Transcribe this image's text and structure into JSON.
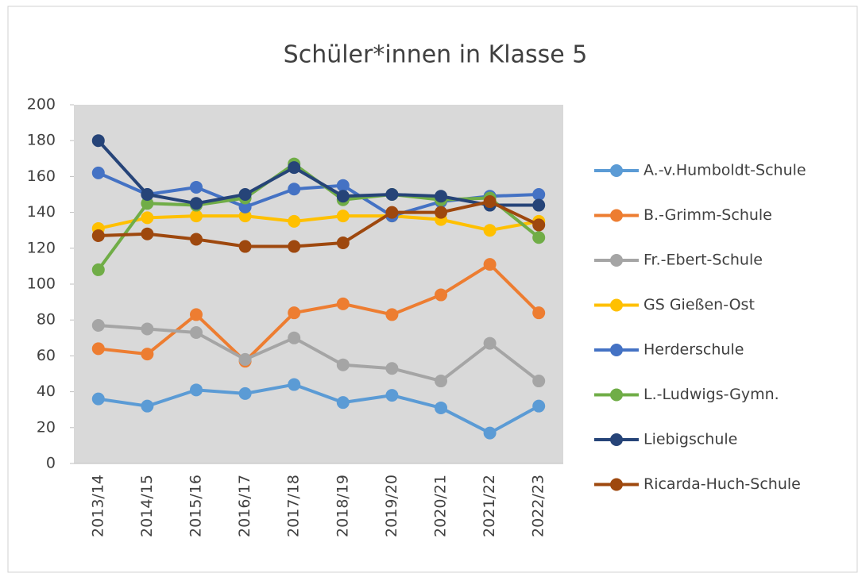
{
  "chart_data": {
    "type": "line",
    "title": "Schüler*innen in Klasse 5",
    "categories": [
      "2013/14",
      "2014/15",
      "2015/16",
      "2016/17",
      "2017/18",
      "2018/19",
      "2019/20",
      "2020/21",
      "2021/22",
      "2022/23"
    ],
    "series": [
      {
        "name": "A.-v.Humboldt-Schule",
        "color": "#5b9bd5",
        "values": [
          36,
          32,
          41,
          39,
          44,
          34,
          38,
          31,
          17,
          32
        ]
      },
      {
        "name": "B.-Grimm-Schule",
        "color": "#ed7d31",
        "values": [
          64,
          61,
          83,
          57,
          84,
          89,
          83,
          94,
          111,
          84
        ]
      },
      {
        "name": "Fr.-Ebert-Schule",
        "color": "#a5a5a5",
        "values": [
          77,
          75,
          73,
          58,
          70,
          55,
          53,
          46,
          67,
          46
        ]
      },
      {
        "name": "GS Gießen-Ost",
        "color": "#ffc000",
        "values": [
          131,
          137,
          138,
          138,
          135,
          138,
          138,
          136,
          130,
          135
        ]
      },
      {
        "name": "Herderschule",
        "color": "#4472c4",
        "values": [
          162,
          150,
          154,
          143,
          153,
          155,
          138,
          146,
          149,
          150
        ]
      },
      {
        "name": "L.-Ludwigs-Gymn.",
        "color": "#70ad47",
        "values": [
          108,
          145,
          144,
          148,
          167,
          147,
          150,
          147,
          148,
          126
        ]
      },
      {
        "name": "Liebigschule",
        "color": "#264478",
        "values": [
          180,
          150,
          145,
          150,
          165,
          149,
          150,
          149,
          144,
          144
        ]
      },
      {
        "name": "Ricarda-Huch-Schule",
        "color": "#9e480e",
        "values": [
          127,
          128,
          125,
          121,
          121,
          123,
          140,
          140,
          146,
          133
        ]
      }
    ],
    "ylim": [
      0,
      200
    ],
    "yticks": [
      0,
      20,
      40,
      60,
      80,
      100,
      120,
      140,
      160,
      180,
      200
    ],
    "legend": "right",
    "plot_background": "#d9d9d9"
  }
}
